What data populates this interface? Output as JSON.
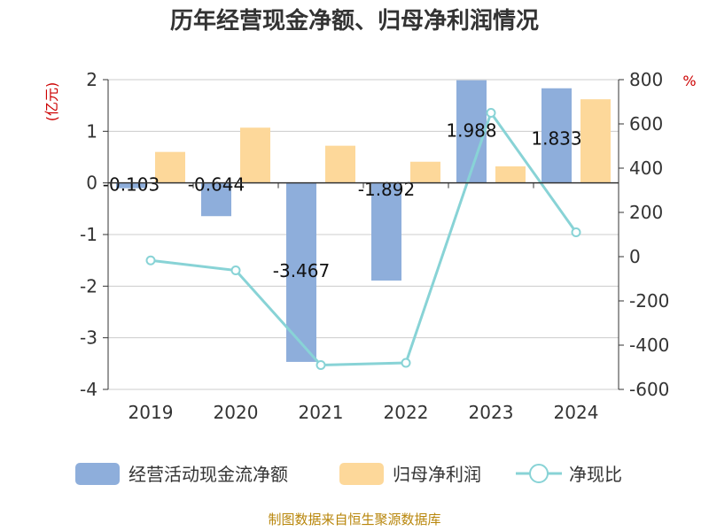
{
  "chart_data": {
    "type": "bar",
    "title": "历年经营现金净额、归母净利润情况",
    "categories": [
      "2019",
      "2020",
      "2021",
      "2022",
      "2023",
      "2024"
    ],
    "series": [
      {
        "name": "经营活动现金流净额",
        "kind": "bar",
        "axis": "left",
        "color": "#8eaedb",
        "values": [
          -0.103,
          -0.644,
          -3.467,
          -1.892,
          1.988,
          1.833
        ],
        "labels": [
          "-0.103",
          "-0.644",
          "-3.467",
          "-1.892",
          "1.988",
          "1.833"
        ]
      },
      {
        "name": "归母净利润",
        "kind": "bar",
        "axis": "left",
        "color": "#fdd89a",
        "values": [
          0.6,
          1.07,
          0.72,
          0.41,
          0.32,
          1.62
        ]
      },
      {
        "name": "净现比",
        "kind": "line",
        "axis": "right",
        "color": "#88d3d6",
        "values": [
          -17,
          -62,
          -490,
          -480,
          650,
          110
        ]
      }
    ],
    "y_left": {
      "unit": "(亿元)",
      "ylim": [
        -4,
        2
      ],
      "ticks": [
        "2",
        "1",
        "0",
        "-1",
        "-2",
        "-3",
        "-4"
      ]
    },
    "y_right": {
      "unit": "%",
      "ylim": [
        -600,
        800
      ],
      "ticks": [
        "800",
        "600",
        "400",
        "200",
        "0",
        "-200",
        "-400",
        "-600"
      ]
    },
    "grid": true,
    "legend_position": "bottom",
    "source": "制图数据来自恒生聚源数据库"
  }
}
